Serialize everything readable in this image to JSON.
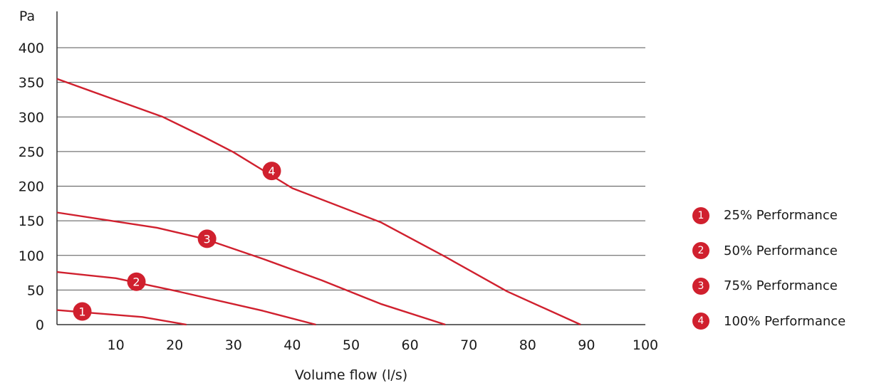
{
  "chart_data": {
    "type": "line",
    "title": "",
    "xlabel": "Volume flow (l/s)",
    "ylabel": "Pa",
    "xlim": [
      0,
      100
    ],
    "ylim": [
      0,
      400
    ],
    "x_ticks": [
      10,
      20,
      30,
      40,
      50,
      60,
      70,
      80,
      90,
      100
    ],
    "y_ticks": [
      0,
      50,
      100,
      150,
      200,
      250,
      300,
      350,
      400
    ],
    "grid": "horizontal",
    "legend_position": "right",
    "line_color": "#d0202e",
    "series": [
      {
        "name": "25% Performance",
        "marker_label": "1",
        "marker_at": [
          4.3,
          19
        ],
        "points": [
          [
            0,
            21
          ],
          [
            14.5,
            11
          ],
          [
            22,
            0
          ]
        ]
      },
      {
        "name": "50% Performance",
        "marker_label": "2",
        "marker_at": [
          13.5,
          62
        ],
        "points": [
          [
            0,
            76
          ],
          [
            10,
            67
          ],
          [
            20,
            49
          ],
          [
            35,
            20
          ],
          [
            44,
            0
          ]
        ]
      },
      {
        "name": "75% Performance",
        "marker_label": "3",
        "marker_at": [
          25.5,
          124
        ],
        "points": [
          [
            0,
            162
          ],
          [
            17,
            140
          ],
          [
            25,
            124
          ],
          [
            35,
            95
          ],
          [
            45,
            64
          ],
          [
            55,
            30
          ],
          [
            66,
            0
          ]
        ]
      },
      {
        "name": "100% Performance",
        "marker_label": "4",
        "marker_at": [
          36.5,
          222
        ],
        "points": [
          [
            0,
            355
          ],
          [
            18,
            300
          ],
          [
            25,
            271
          ],
          [
            30,
            249
          ],
          [
            40,
            197
          ],
          [
            55,
            148
          ],
          [
            66,
            98
          ],
          [
            76.5,
            48
          ],
          [
            89,
            0
          ]
        ]
      }
    ]
  }
}
